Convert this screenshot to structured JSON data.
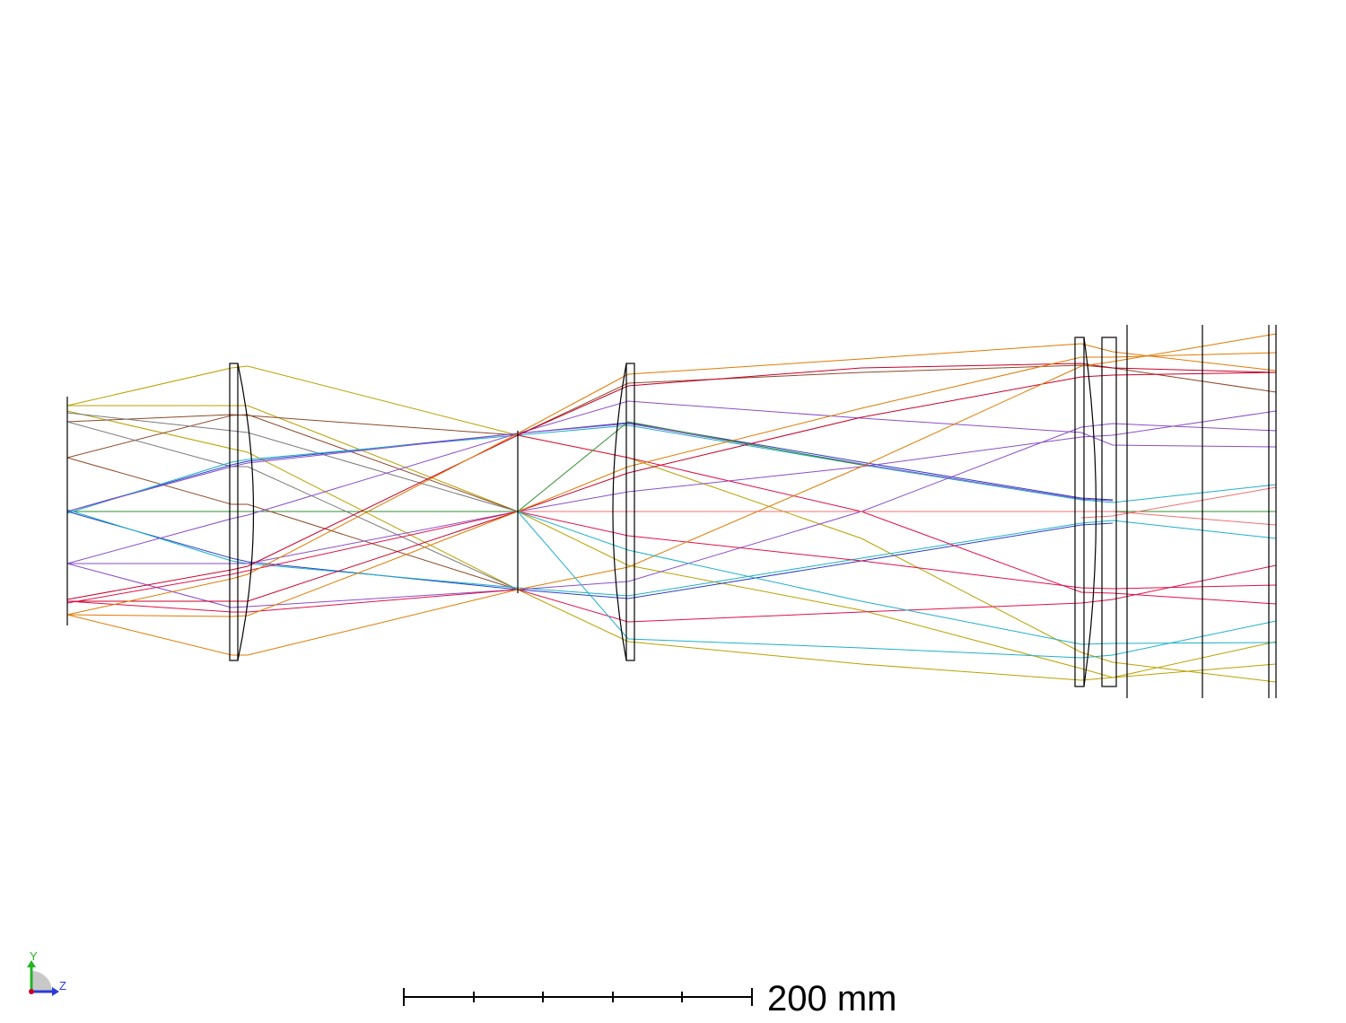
{
  "diagram": {
    "type": "optical-layout",
    "scale_bar": {
      "label": "200 mm",
      "divisions": 5
    },
    "axes": {
      "y_label": "Y",
      "z_label": "Z"
    },
    "colors": {
      "outline": "#000000",
      "axis_y": "#22b422",
      "axis_z": "#2b3bd6",
      "rays": [
        "#2f8f2f",
        "#2a3fc8",
        "#b8a200",
        "#e07a00",
        "#c8002a",
        "#8a4fc9",
        "#e0104a",
        "#8b4a2b",
        "#1fb0c8",
        "#f07070",
        "#7a7a7a"
      ]
    }
  }
}
